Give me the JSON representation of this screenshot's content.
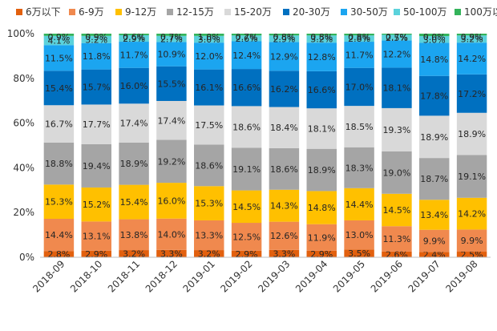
{
  "chart_data": {
    "type": "bar",
    "stacked": true,
    "normalized": true,
    "categories": [
      "2018-09",
      "2018-10",
      "2018-11",
      "2018-12",
      "2019-01",
      "2019-02",
      "2019-03",
      "2019-04",
      "2019-05",
      "2019-06",
      "2019-07",
      "2019-08"
    ],
    "y_ticks": [
      "0%",
      "20%",
      "40%",
      "60%",
      "80%",
      "100%"
    ],
    "ylim": [
      0,
      100
    ],
    "legend_position": "top",
    "grid": false,
    "series": [
      {
        "name": "6万以下",
        "color": "#E2600E",
        "values": [
          2.8,
          2.9,
          3.2,
          3.3,
          3.2,
          2.9,
          3.3,
          2.9,
          3.5,
          2.6,
          2.4,
          2.5
        ],
        "labels": [
          "2.8%",
          "2.9%",
          "3.2%",
          "3.3%",
          "3.2%",
          "2.9%",
          "3.3%",
          "2.9%",
          "3.5%",
          "2.6%",
          "2.4%",
          "2.5%"
        ]
      },
      {
        "name": "6-9万",
        "color": "#F0894E",
        "values": [
          14.4,
          13.1,
          13.8,
          14.0,
          13.3,
          12.5,
          12.6,
          11.9,
          13.0,
          11.3,
          9.9,
          9.9
        ],
        "labels": [
          "14.4%",
          "13.1%",
          "13.8%",
          "14.0%",
          "13.3%",
          "12.5%",
          "12.6%",
          "11.9%",
          "13.0%",
          "11.3%",
          "9.9%",
          "9.9%"
        ]
      },
      {
        "name": "9-12万",
        "color": "#FFC000",
        "values": [
          15.3,
          15.2,
          15.4,
          16.0,
          15.3,
          14.5,
          14.3,
          14.8,
          14.4,
          14.5,
          13.4,
          14.2
        ],
        "labels": [
          "15.3%",
          "15.2%",
          "15.4%",
          "16.0%",
          "15.3%",
          "14.5%",
          "14.3%",
          "14.8%",
          "14.4%",
          "14.5%",
          "13.4%",
          "14.2%"
        ]
      },
      {
        "name": "12-15万",
        "color": "#A5A5A5",
        "values": [
          18.8,
          19.4,
          18.9,
          19.2,
          18.6,
          19.1,
          18.6,
          18.9,
          18.3,
          19.0,
          18.7,
          19.1
        ],
        "labels": [
          "18.8%",
          "19.4%",
          "18.9%",
          "19.2%",
          "18.6%",
          "19.1%",
          "18.6%",
          "18.9%",
          "18.3%",
          "19.0%",
          "18.7%",
          "19.1%"
        ]
      },
      {
        "name": "15-20万",
        "color": "#D9D9D9",
        "values": [
          16.7,
          17.7,
          17.4,
          17.4,
          17.5,
          18.6,
          18.4,
          18.1,
          18.5,
          19.3,
          18.9,
          18.9
        ],
        "labels": [
          "16.7%",
          "17.7%",
          "17.4%",
          "17.4%",
          "17.5%",
          "18.6%",
          "18.4%",
          "18.1%",
          "18.5%",
          "19.3%",
          "18.9%",
          "18.9%"
        ]
      },
      {
        "name": "20-30万",
        "color": "#0070C0",
        "values": [
          15.4,
          15.7,
          16.0,
          15.5,
          16.1,
          16.6,
          16.2,
          16.6,
          17.0,
          18.1,
          17.8,
          17.2
        ],
        "labels": [
          "15.4%",
          "15.7%",
          "16.0%",
          "15.5%",
          "16.1%",
          "16.6%",
          "16.2%",
          "16.6%",
          "17.0%",
          "18.1%",
          "17.8%",
          "17.2%"
        ]
      },
      {
        "name": "30-50万",
        "color": "#1BA5F0",
        "values": [
          11.5,
          11.8,
          11.7,
          10.9,
          12.0,
          12.4,
          12.9,
          12.8,
          11.7,
          12.2,
          14.8,
          14.2
        ],
        "labels": [
          "11.5%",
          "11.8%",
          "11.7%",
          "10.9%",
          "12.0%",
          "12.4%",
          "12.9%",
          "12.8%",
          "11.7%",
          "12.2%",
          "14.8%",
          "14.2%"
        ]
      },
      {
        "name": "50-100万",
        "color": "#5BD2DB",
        "values": [
          4.1,
          3.2,
          2.9,
          2.7,
          3.0,
          2.6,
          2.9,
          3.2,
          2.8,
          2.5,
          3.0,
          3.2
        ],
        "labels": [
          "4.1%",
          "3.2%",
          "2.9%",
          "2.7%",
          "3.0%",
          "2.6%",
          "2.9%",
          "3.2%",
          "2.8%",
          "2.5%",
          "3.0%",
          "3.2%"
        ]
      },
      {
        "name": "100万以上",
        "color": "#33B35A",
        "values": [
          0.9,
          0.9,
          0.6,
          0.7,
          1.0,
          0.7,
          0.8,
          0.8,
          0.8,
          0.7,
          0.0,
          0.9
        ],
        "labels": [
          "0.9%",
          "0.9%",
          "0.6%",
          "0.7%",
          "1.0%",
          "0.7%",
          "0.8%",
          "0.8%",
          "0.8%",
          "0.7%",
          "0.0%",
          "0.9%"
        ]
      }
    ]
  }
}
